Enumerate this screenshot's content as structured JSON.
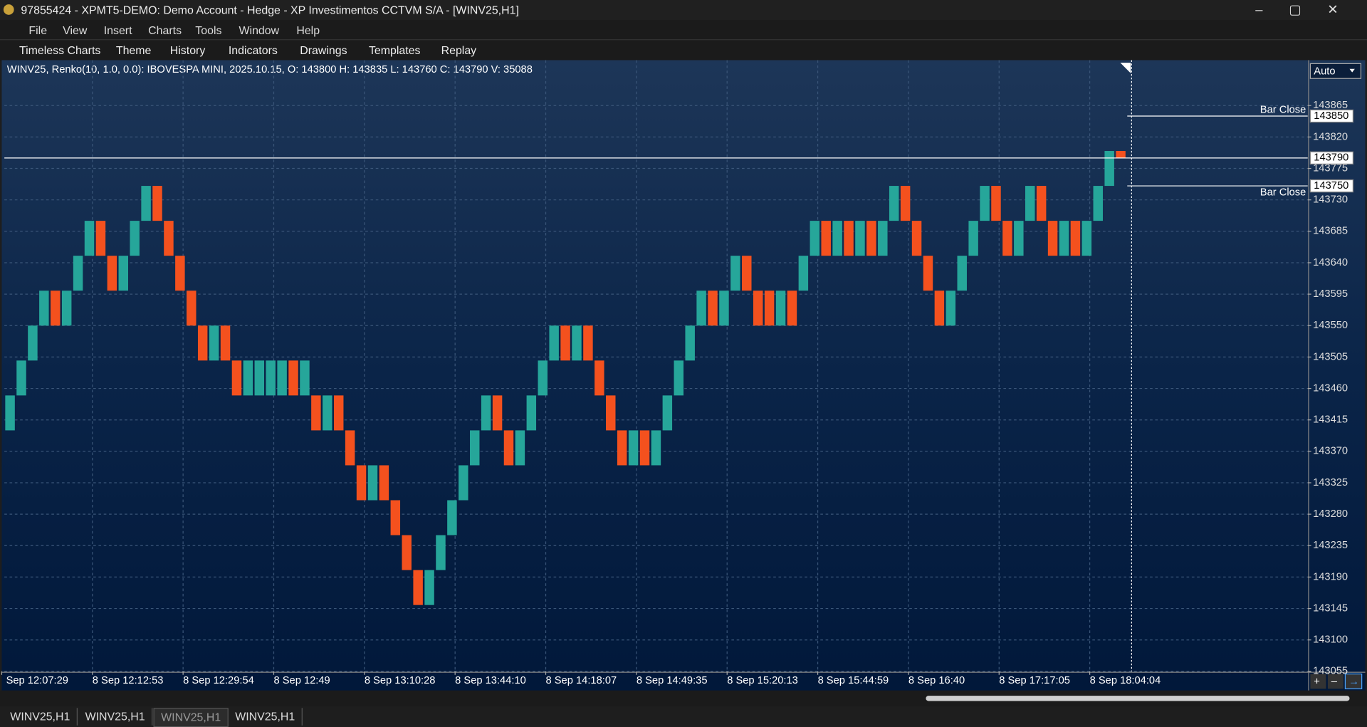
{
  "window": {
    "title": "97855424 - XPMT5-DEMO: Demo Account - Hedge - XP Investimentos CCTVM S/A - [WINV25,H1]"
  },
  "menu": [
    "File",
    "View",
    "Insert",
    "Charts",
    "Tools",
    "Window",
    "Help"
  ],
  "toolbar": [
    "Timeless Charts",
    "Theme",
    "History",
    "Indicators",
    "Drawings",
    "Templates",
    "Replay"
  ],
  "tabs": [
    "WINV25,H1",
    "WINV25,H1",
    "WINV25,H1",
    "WINV25,H1"
  ],
  "chart_data": {
    "type": "candlestick",
    "title": "WINV25, Renko(10, 1.0, 0.0): IBOVESPA MINI, 2025.10.15, O: 143800 H: 143835 L: 143760 C: 143790 V: 35088",
    "scale_mode": "Auto",
    "up_color": "#26a69a",
    "down_color": "#f4511e",
    "categories": [
      "Sep 12:07:29",
      null,
      null,
      null,
      null,
      null,
      null,
      null,
      "8 Sep 12:12:53",
      null,
      null,
      null,
      null,
      null,
      null,
      null,
      "8 Sep 12:29:54",
      null,
      null,
      null,
      null,
      null,
      null,
      null,
      "8 Sep 12:49",
      null,
      null,
      null,
      null,
      null,
      null,
      null,
      "8 Sep 13:10:28",
      null,
      null,
      null,
      null,
      null,
      null,
      null,
      "8 Sep 13:44:10",
      null,
      null,
      null,
      null,
      null,
      null,
      null,
      "8 Sep 14:18:07",
      null,
      null,
      null,
      null,
      null,
      null,
      null,
      "8 Sep 14:49:35",
      null,
      null,
      null,
      null,
      null,
      null,
      null,
      "8 Sep 15:20:13",
      null,
      null,
      null,
      null,
      null,
      null,
      null,
      "8 Sep 15:44:59",
      null,
      null,
      null,
      null,
      null,
      null,
      null,
      "8 Sep 16:40",
      null,
      null,
      null,
      null,
      null,
      null,
      null,
      "8 Sep 17:17:05",
      null,
      null,
      null,
      null,
      null,
      null,
      null,
      "8 Sep 18:04:04",
      null,
      null
    ],
    "open": [
      143400,
      143450,
      143500,
      143550,
      143600,
      143550,
      143600,
      143650,
      143700,
      143650,
      143600,
      143650,
      143700,
      143750,
      143700,
      143650,
      143600,
      143550,
      143500,
      143550,
      143500,
      143450,
      143450,
      143450,
      143450,
      143500,
      143450,
      143450,
      143400,
      143450,
      143400,
      143350,
      143300,
      143350,
      143300,
      143250,
      143200,
      143150,
      143200,
      143250,
      143300,
      143350,
      143400,
      143450,
      143400,
      143350,
      143400,
      143450,
      143500,
      143550,
      143500,
      143550,
      143500,
      143450,
      143400,
      143350,
      143400,
      143350,
      143400,
      143450,
      143500,
      143550,
      143600,
      143550,
      143600,
      143650,
      143600,
      143600,
      143550,
      143600,
      143600,
      143650,
      143700,
      143650,
      143700,
      143650,
      143700,
      143650,
      143700,
      143750,
      143700,
      143650,
      143600,
      143550,
      143600,
      143650,
      143700,
      143750,
      143700,
      143650,
      143700,
      143750,
      143700,
      143650,
      143700,
      143650,
      143700,
      143750,
      143800
    ],
    "close": [
      143450,
      143500,
      143550,
      143600,
      143550,
      143600,
      143650,
      143700,
      143650,
      143600,
      143650,
      143700,
      143750,
      143700,
      143650,
      143600,
      143550,
      143500,
      143550,
      143500,
      143450,
      143500,
      143500,
      143500,
      143500,
      143450,
      143500,
      143400,
      143450,
      143400,
      143350,
      143300,
      143350,
      143300,
      143250,
      143200,
      143150,
      143200,
      143250,
      143300,
      143350,
      143400,
      143450,
      143400,
      143350,
      143400,
      143450,
      143500,
      143550,
      143500,
      143550,
      143500,
      143450,
      143400,
      143350,
      143400,
      143350,
      143400,
      143450,
      143500,
      143550,
      143600,
      143550,
      143600,
      143650,
      143600,
      143550,
      143550,
      143600,
      143550,
      143650,
      143700,
      143650,
      143700,
      143650,
      143700,
      143650,
      143700,
      143750,
      143700,
      143650,
      143600,
      143550,
      143600,
      143650,
      143700,
      143750,
      143700,
      143650,
      143700,
      143750,
      143700,
      143650,
      143700,
      143650,
      143700,
      143750,
      143800,
      143790
    ],
    "ylim": [
      143055,
      143930
    ],
    "yticks": [
      143865,
      143820,
      143775,
      143730,
      143685,
      143640,
      143595,
      143550,
      143505,
      143460,
      143415,
      143370,
      143325,
      143280,
      143235,
      143190,
      143145,
      143100,
      143055
    ],
    "grid": true,
    "price_lines": [
      {
        "label": "Bar Close",
        "value": 143850
      },
      {
        "value": 143790
      },
      {
        "label": "Bar Close",
        "value": 143750
      }
    ]
  }
}
